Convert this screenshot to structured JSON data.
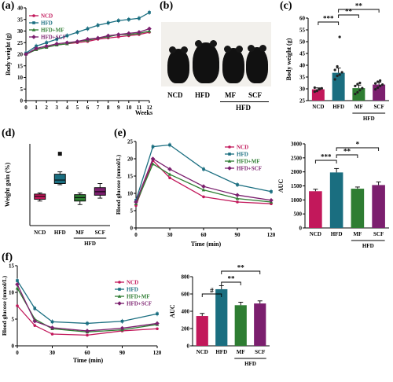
{
  "panels": {
    "a": "(a)",
    "b": "(b)",
    "c": "(c)",
    "d": "(d)",
    "e": "(e)",
    "f": "(f)"
  },
  "photo": {
    "labels": [
      "NCD",
      "HFD",
      "MF",
      "SCF"
    ],
    "group_label": "HFD"
  },
  "colors": {
    "NCD": "#c2185b",
    "HFD": "#1a6e80",
    "HFD+MF": "#2e7d32",
    "HFD+SCF": "#7b1f6e"
  },
  "chart_data": [
    {
      "id": "a",
      "type": "line",
      "ylabel": "Body weight (g)",
      "xlabel": "Weeks",
      "ylim": [
        0,
        40
      ],
      "yticks": [
        0,
        5,
        10,
        15,
        20,
        25,
        30,
        35,
        40
      ],
      "xlim": [
        0,
        12
      ],
      "x": [
        0,
        1,
        2,
        3,
        4,
        5,
        6,
        7,
        8,
        9,
        10,
        11,
        12
      ],
      "legend": "top-left",
      "series": [
        {
          "name": "NCD",
          "values": [
            20,
            22,
            23,
            24,
            24.5,
            25,
            25.5,
            26.5,
            27,
            27.5,
            28,
            28.5,
            29.5
          ]
        },
        {
          "name": "HFD",
          "values": [
            20.5,
            23.5,
            25,
            26.5,
            28,
            29.5,
            31,
            32.5,
            33.5,
            34.5,
            35,
            35.5,
            38
          ]
        },
        {
          "name": "HFD+MF",
          "values": [
            20,
            22,
            23,
            24,
            24.5,
            25.5,
            26,
            27,
            27.5,
            28.5,
            28.5,
            29,
            30
          ]
        },
        {
          "name": "HFD+SCF",
          "values": [
            20,
            22.5,
            23.5,
            24.5,
            25,
            25.5,
            26.5,
            27,
            28,
            28.5,
            29,
            29.5,
            31
          ]
        }
      ]
    },
    {
      "id": "c",
      "type": "bar",
      "ylabel": "Body weight (g)",
      "ylim": [
        25,
        60
      ],
      "yticks": [
        25,
        30,
        35,
        40,
        45,
        50,
        55,
        60
      ],
      "categories": [
        "NCD",
        "HFD",
        "MF",
        "SCF"
      ],
      "group_label": "HFD",
      "values": [
        29.8,
        36.8,
        30.3,
        31.8
      ],
      "errors": [
        0.6,
        2.0,
        1.3,
        1.0
      ],
      "points": [
        [
          28.8,
          29.3,
          29.8,
          30.2,
          30.5,
          29.1,
          30.0
        ],
        [
          34,
          35.5,
          36,
          37,
          38,
          39.5,
          52
        ],
        [
          27.8,
          28.5,
          29.4,
          30.3,
          31.2,
          32,
          32.5
        ],
        [
          29.8,
          30.5,
          31.2,
          31.8,
          32.3,
          33,
          33.5
        ]
      ],
      "significance": [
        {
          "from": 0,
          "to": 1,
          "label": "***"
        },
        {
          "from": 1,
          "to": 2,
          "label": "**"
        },
        {
          "from": 1,
          "to": 3,
          "label": "**"
        }
      ]
    },
    {
      "id": "d",
      "type": "box",
      "ylabel": "Weight gain (%)",
      "categories": [
        "NCD",
        "HFD",
        "MF",
        "SCF"
      ],
      "group_label": "HFD",
      "ylim": [
        0,
        140
      ],
      "boxes": [
        {
          "min": 42,
          "q1": 45,
          "median": 50,
          "q3": 54,
          "max": 56
        },
        {
          "min": 70,
          "q1": 72,
          "median": 78,
          "q3": 88,
          "max": 92,
          "outlier": 123
        },
        {
          "min": 36,
          "q1": 42,
          "median": 48,
          "q3": 53,
          "max": 56
        },
        {
          "min": 47,
          "q1": 52,
          "median": 58,
          "q3": 65,
          "max": 72
        }
      ]
    },
    {
      "id": "e",
      "type": "line",
      "ylabel": "Blood glucose (mmol/L)",
      "xlabel": "Time (min)",
      "ylim": [
        0,
        25
      ],
      "yticks": [
        0,
        5,
        10,
        15,
        20,
        25
      ],
      "xlim": [
        0,
        120
      ],
      "x": [
        0,
        15,
        30,
        60,
        90,
        120
      ],
      "xticks": [
        0,
        30,
        60,
        90,
        120
      ],
      "legend": "top-right",
      "series": [
        {
          "name": "NCD",
          "values": [
            6.5,
            19.5,
            14.5,
            9.0,
            7.5,
            7.0
          ]
        },
        {
          "name": "HFD",
          "values": [
            8.0,
            23.5,
            24.0,
            17.0,
            12.5,
            10.5
          ]
        },
        {
          "name": "HFD+MF",
          "values": [
            7.0,
            18.5,
            15.5,
            11.0,
            8.5,
            7.5
          ]
        },
        {
          "name": "HFD+SCF",
          "values": [
            7.5,
            20.0,
            17.0,
            12.0,
            9.5,
            8.0
          ]
        }
      ]
    },
    {
      "id": "e-auc",
      "type": "bar",
      "ylabel": "AUC",
      "ylim": [
        0,
        3000
      ],
      "yticks": [
        0,
        500,
        1000,
        1500,
        2000,
        2500,
        3000
      ],
      "categories": [
        "NCD",
        "HFD",
        "MF",
        "SCF"
      ],
      "group_label": "HFD",
      "values": [
        1310,
        1980,
        1400,
        1530
      ],
      "errors": [
        70,
        140,
        60,
        110
      ],
      "significance": [
        {
          "from": 0,
          "to": 1,
          "label": "***"
        },
        {
          "from": 1,
          "to": 2,
          "label": "**"
        },
        {
          "from": 1,
          "to": 3,
          "label": "*"
        }
      ]
    },
    {
      "id": "f",
      "type": "line",
      "ylabel": "Blood glucose (mmol/L)",
      "xlabel": "Time (min)",
      "ylim": [
        0,
        15
      ],
      "yticks": [
        0,
        5,
        10,
        15
      ],
      "xlim": [
        0,
        120
      ],
      "x": [
        0,
        15,
        30,
        60,
        90,
        120
      ],
      "xticks": [
        0,
        30,
        60,
        90,
        120
      ],
      "legend": "top-right",
      "series": [
        {
          "name": "NCD",
          "values": [
            7.5,
            3.8,
            2.2,
            2.0,
            2.8,
            3.2
          ]
        },
        {
          "name": "HFD",
          "values": [
            12.2,
            7.0,
            4.5,
            4.2,
            4.6,
            6.0
          ]
        },
        {
          "name": "HFD+MF",
          "values": [
            10.8,
            5.0,
            3.2,
            2.6,
            3.0,
            4.0
          ]
        },
        {
          "name": "HFD+SCF",
          "values": [
            11.5,
            4.6,
            3.4,
            2.8,
            3.3,
            4.2
          ]
        }
      ]
    },
    {
      "id": "f-auc",
      "type": "bar",
      "ylabel": "AUC",
      "ylim": [
        0,
        800
      ],
      "yticks": [
        0,
        200,
        400,
        600,
        800
      ],
      "categories": [
        "NCD",
        "HFD",
        "MF",
        "SCF"
      ],
      "group_label": "HFD",
      "values": [
        345,
        655,
        470,
        490
      ],
      "errors": [
        30,
        40,
        35,
        30
      ],
      "significance": [
        {
          "from": 0,
          "to": 1,
          "label": "#"
        },
        {
          "from": 1,
          "to": 2,
          "label": "**"
        },
        {
          "from": 1,
          "to": 3,
          "label": "**"
        }
      ]
    }
  ]
}
